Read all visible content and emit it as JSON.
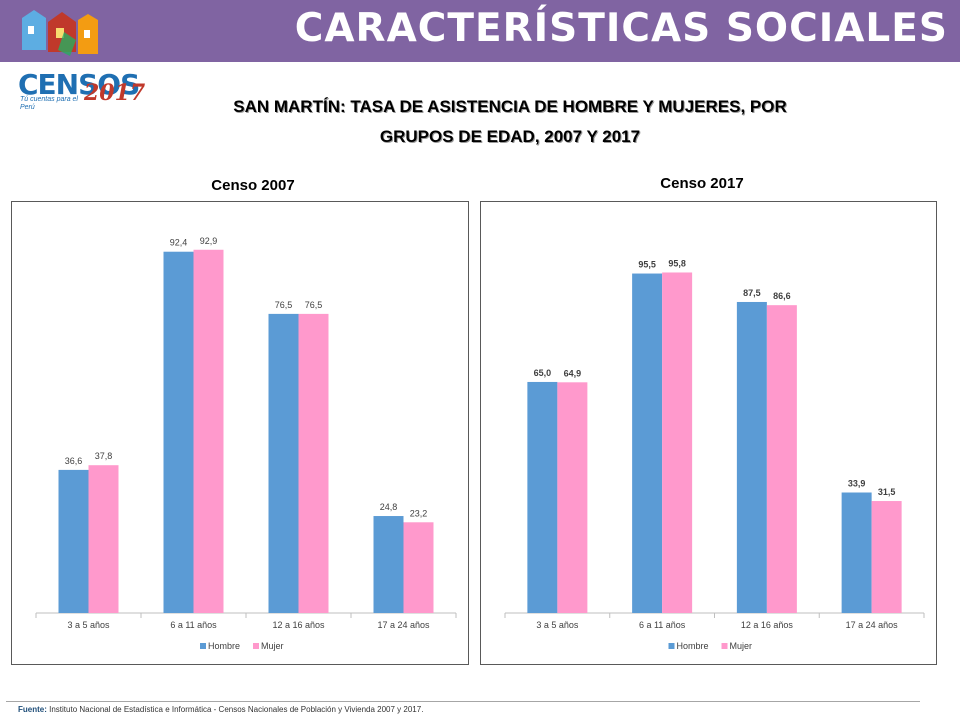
{
  "header": {
    "title": "CARACTERÍSTICAS SOCIALES"
  },
  "logo": {
    "wordmark": "CENSOS",
    "year": "2017",
    "tagline": "Tú cuentas para el Perú"
  },
  "main_title": {
    "line1": "SAN MARTÍN: TASA DE ASISTENCIA DE HOMBRE Y MUJERES, POR",
    "line2": "GRUPOS DE EDAD, 2007 Y 2017"
  },
  "colors": {
    "band": "#8064a2",
    "hombre": "#5b9bd5",
    "mujer": "#ff99cc"
  },
  "chart_data": [
    {
      "type": "bar",
      "title": "Censo 2007",
      "categories": [
        "3 a 5 años",
        "6 a 11 años",
        "12 a 16 años",
        "17 a 24 años"
      ],
      "series": [
        {
          "name": "Hombre",
          "values": [
            36.6,
            92.4,
            76.5,
            24.8
          ],
          "labels": [
            "36,6",
            "92,4",
            "76,5",
            "24,8"
          ]
        },
        {
          "name": "Mujer",
          "values": [
            37.8,
            92.9,
            76.5,
            23.2
          ],
          "labels": [
            "37,8",
            "92,9",
            "76,5",
            "23,2"
          ]
        }
      ],
      "ylim": [
        0,
        100
      ],
      "legend": "bottom",
      "label_bold": false
    },
    {
      "type": "bar",
      "title": "Censo 2017",
      "categories": [
        "3 a 5 años",
        "6 a 11 años",
        "12 a 16 años",
        "17 a 24 años"
      ],
      "series": [
        {
          "name": "Hombre",
          "values": [
            65.0,
            95.5,
            87.5,
            33.9
          ],
          "labels": [
            "65,0",
            "95,5",
            "87,5",
            "33,9"
          ]
        },
        {
          "name": "Mujer",
          "values": [
            64.9,
            95.8,
            86.6,
            31.5
          ],
          "labels": [
            "64,9",
            "95,8",
            "86,6",
            "31,5"
          ]
        }
      ],
      "ylim": [
        0,
        110
      ],
      "legend": "bottom",
      "label_bold": true
    }
  ],
  "footer": {
    "label": "Fuente:",
    "text": "Instituto Nacional de Estadística e Informática - Censos Nacionales de Población y Vivienda 2007 y 2017."
  }
}
